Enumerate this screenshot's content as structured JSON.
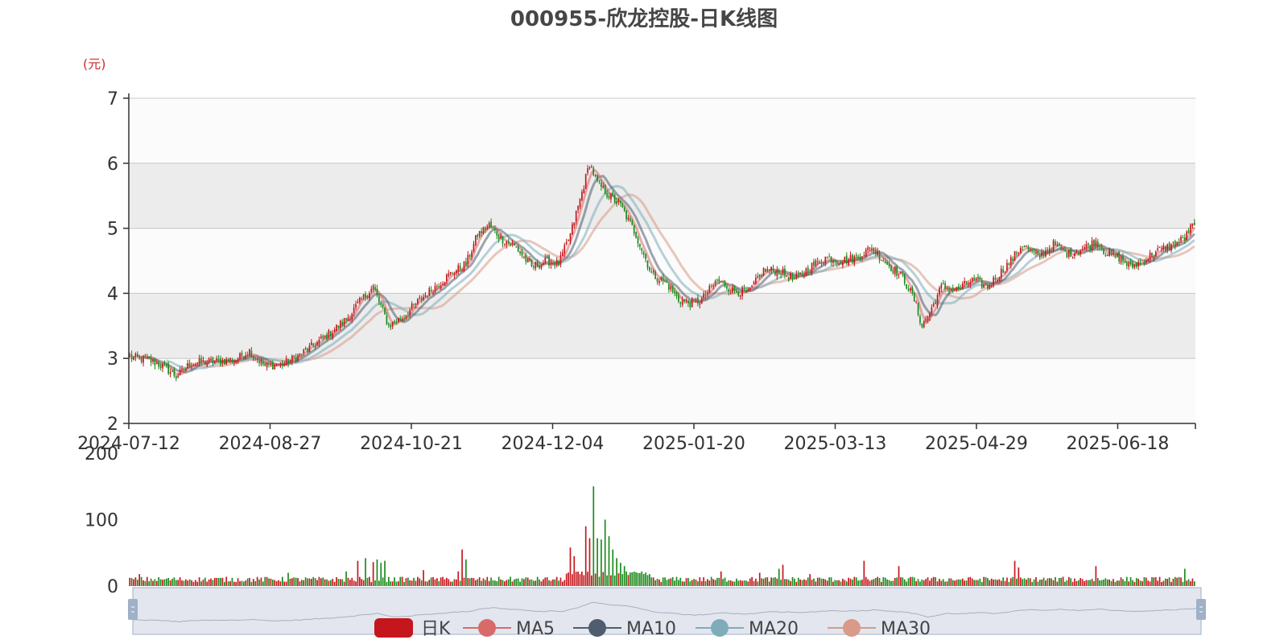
{
  "colors": {
    "up": "#c4161c",
    "down": "#1a8a1a",
    "ma5": "#d96a6a",
    "ma10": "#4f5d6e",
    "ma20": "#7eadb9",
    "ma30": "#d99a88",
    "band_light": "#fbfbfb",
    "band_dark": "#ececec",
    "grid": "#c8c8c8",
    "axis": "#333333",
    "slider_fill": "#d9dee8",
    "slider_handle": "#9fb0c8"
  },
  "chart_data": {
    "type": "candlestick",
    "title": "000955-欣龙控股-日K线图",
    "price_unit": "(元)",
    "price_ylim": [
      2,
      7
    ],
    "price_yticks": [
      "2",
      "3",
      "4",
      "5",
      "6",
      "7"
    ],
    "volume_ylim": [
      0,
      200
    ],
    "volume_yticks": [
      "0",
      "100",
      "200"
    ],
    "x_ticks": [
      "2024-07-12",
      "2024-08-27",
      "2024-10-21",
      "2024-12-04",
      "2025-01-20",
      "2025-03-13",
      "2025-04-29",
      "2025-06-18"
    ],
    "close_trend": [
      [
        0,
        3.02
      ],
      [
        10,
        2.97
      ],
      [
        18,
        2.87
      ],
      [
        24,
        2.72
      ],
      [
        32,
        2.93
      ],
      [
        45,
        2.95
      ],
      [
        55,
        2.98
      ],
      [
        62,
        3.12
      ],
      [
        70,
        2.88
      ],
      [
        80,
        2.92
      ],
      [
        88,
        3.05
      ],
      [
        95,
        3.2
      ],
      [
        102,
        3.35
      ],
      [
        112,
        3.6
      ],
      [
        120,
        3.9
      ],
      [
        126,
        4.1
      ],
      [
        134,
        3.5
      ],
      [
        142,
        3.65
      ],
      [
        150,
        3.9
      ],
      [
        158,
        4.1
      ],
      [
        166,
        4.3
      ],
      [
        174,
        4.45
      ],
      [
        180,
        4.9
      ],
      [
        186,
        5.05
      ],
      [
        192,
        4.85
      ],
      [
        200,
        4.7
      ],
      [
        208,
        4.4
      ],
      [
        216,
        4.5
      ],
      [
        222,
        4.45
      ],
      [
        228,
        4.9
      ],
      [
        234,
        5.55
      ],
      [
        238,
        6.0
      ],
      [
        242,
        5.7
      ],
      [
        248,
        5.5
      ],
      [
        254,
        5.35
      ],
      [
        262,
        4.9
      ],
      [
        270,
        4.3
      ],
      [
        278,
        4.15
      ],
      [
        284,
        3.9
      ],
      [
        290,
        3.85
      ],
      [
        296,
        3.9
      ],
      [
        304,
        4.2
      ],
      [
        312,
        4.05
      ],
      [
        320,
        4.0
      ],
      [
        328,
        4.35
      ],
      [
        336,
        4.35
      ],
      [
        344,
        4.2
      ],
      [
        352,
        4.4
      ],
      [
        360,
        4.55
      ],
      [
        368,
        4.5
      ],
      [
        376,
        4.55
      ],
      [
        384,
        4.7
      ],
      [
        392,
        4.45
      ],
      [
        400,
        4.25
      ],
      [
        406,
        3.9
      ],
      [
        410,
        3.5
      ],
      [
        414,
        3.7
      ],
      [
        420,
        4.1
      ],
      [
        428,
        4.05
      ],
      [
        436,
        4.2
      ],
      [
        444,
        4.1
      ],
      [
        450,
        4.3
      ],
      [
        456,
        4.5
      ],
      [
        462,
        4.75
      ],
      [
        470,
        4.55
      ],
      [
        478,
        4.75
      ],
      [
        486,
        4.6
      ],
      [
        494,
        4.7
      ],
      [
        500,
        4.8
      ],
      [
        506,
        4.6
      ],
      [
        512,
        4.55
      ],
      [
        518,
        4.4
      ],
      [
        524,
        4.5
      ],
      [
        532,
        4.65
      ],
      [
        540,
        4.75
      ],
      [
        546,
        4.85
      ],
      [
        550,
        5.05
      ],
      [
        551,
        5.0
      ]
    ],
    "volume_spikes": [
      [
        5,
        18
      ],
      [
        82,
        20
      ],
      [
        112,
        22
      ],
      [
        118,
        38
      ],
      [
        122,
        42
      ],
      [
        126,
        36
      ],
      [
        128,
        40
      ],
      [
        130,
        35
      ],
      [
        132,
        38
      ],
      [
        152,
        24
      ],
      [
        170,
        22
      ],
      [
        172,
        55
      ],
      [
        174,
        40
      ],
      [
        228,
        58
      ],
      [
        230,
        45
      ],
      [
        236,
        90
      ],
      [
        238,
        72
      ],
      [
        240,
        150
      ],
      [
        242,
        72
      ],
      [
        244,
        70
      ],
      [
        246,
        100
      ],
      [
        248,
        75
      ],
      [
        250,
        55
      ],
      [
        252,
        42
      ],
      [
        254,
        35
      ],
      [
        256,
        30
      ],
      [
        306,
        22
      ],
      [
        326,
        20
      ],
      [
        336,
        26
      ],
      [
        338,
        32
      ],
      [
        352,
        18
      ],
      [
        380,
        38
      ],
      [
        398,
        30
      ],
      [
        444,
        12
      ],
      [
        458,
        38
      ],
      [
        460,
        28
      ],
      [
        500,
        30
      ],
      [
        532,
        8
      ],
      [
        546,
        26
      ]
    ],
    "legend": [
      "日K",
      "MA5",
      "MA10",
      "MA20",
      "MA30"
    ],
    "series_names": [
      "日K",
      "MA5",
      "MA10",
      "MA20",
      "MA30"
    ],
    "up_color_meaning": "red = rise, green = fall"
  }
}
